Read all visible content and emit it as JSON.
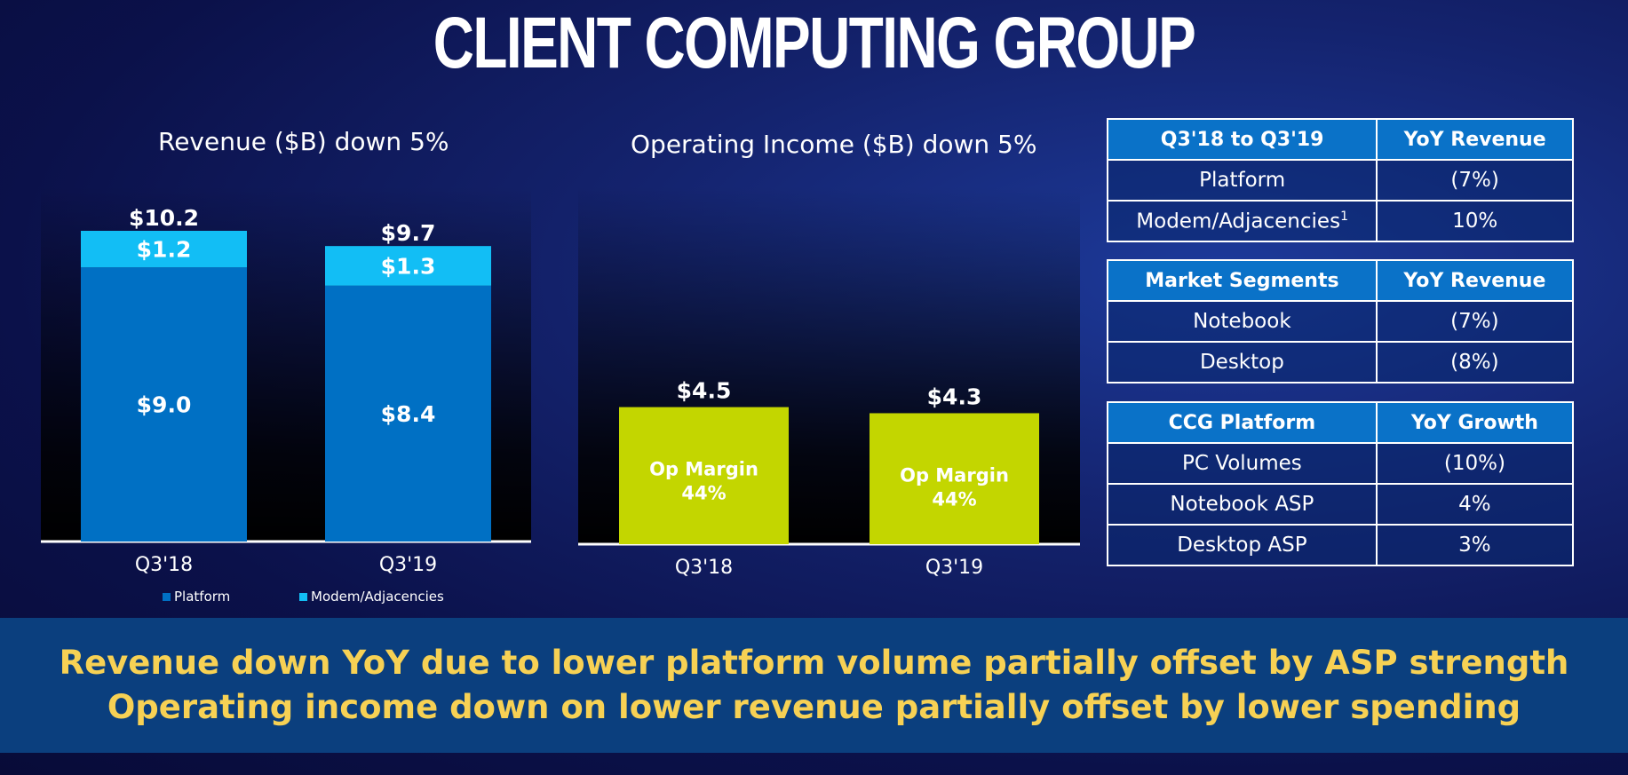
{
  "title": "CLIENT COMPUTING GROUP",
  "colors": {
    "platform": "#0070c4",
    "modem": "#12bef5",
    "op_income": "#c3d600",
    "banner_text": "#f7d154",
    "table_header": "#0a72c8"
  },
  "chart_data": [
    {
      "type": "bar",
      "stacked": true,
      "title": "Revenue ($B) down 5%",
      "categories": [
        "Q3'18",
        "Q3'19"
      ],
      "series": [
        {
          "name": "Platform",
          "values": [
            9.0,
            8.4
          ],
          "labels": [
            "$9.0",
            "$8.4"
          ]
        },
        {
          "name": "Modem/Adjacencies",
          "values": [
            1.2,
            1.3
          ],
          "labels": [
            "$1.2",
            "$1.3"
          ]
        }
      ],
      "totals": [
        10.2,
        9.7
      ],
      "total_labels": [
        "$10.2",
        "$9.7"
      ],
      "ylim": [
        0,
        10.2
      ],
      "legend": "bottom"
    },
    {
      "type": "bar",
      "title": "Operating Income ($B) down 5%",
      "categories": [
        "Q3'18",
        "Q3'19"
      ],
      "series": [
        {
          "values": [
            4.5,
            4.3
          ],
          "labels": [
            "$4.5",
            "$4.3"
          ]
        }
      ],
      "annotations": [
        {
          "line1": "Op Margin",
          "line2": "44%"
        },
        {
          "line1": "Op Margin",
          "line2": "44%"
        }
      ],
      "ylim": [
        0,
        10.2
      ]
    }
  ],
  "tables": [
    {
      "header": [
        "Q3'18 to Q3'19",
        "YoY Revenue"
      ],
      "rows": [
        {
          "label": "Platform",
          "value": "(7%)"
        },
        {
          "label": "Modem/Adjacencies",
          "sup": "1",
          "value": "10%"
        }
      ]
    },
    {
      "header": [
        "Market Segments",
        "YoY Revenue"
      ],
      "rows": [
        {
          "label": "Notebook",
          "value": "(7%)"
        },
        {
          "label": "Desktop",
          "value": "(8%)"
        }
      ]
    },
    {
      "header": [
        "CCG Platform",
        "YoY Growth"
      ],
      "rows": [
        {
          "label": "PC Volumes",
          "value": "(10%)"
        },
        {
          "label": "Notebook ASP",
          "value": "4%"
        },
        {
          "label": "Desktop ASP",
          "value": "3%"
        }
      ]
    }
  ],
  "banner": {
    "line1": "Revenue down YoY due to lower platform volume partially offset by ASP strength",
    "line2": "Operating income down on lower revenue partially offset by lower spending"
  }
}
